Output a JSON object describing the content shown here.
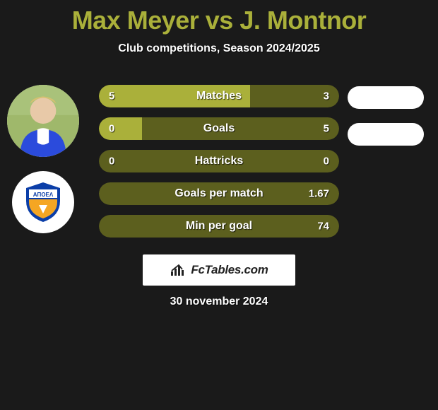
{
  "title_color": "#aab03a",
  "title": "Max Meyer vs J. Montnor",
  "subtitle": "Club competitions, Season 2024/2025",
  "bars": {
    "bg_color": "#5c5f1e",
    "fill_color": "#aab03a",
    "label_fontsize": 16,
    "value_fontsize": 15,
    "items": [
      {
        "label": "Matches",
        "left": "5",
        "right": "3",
        "fill_pct": 63
      },
      {
        "label": "Goals",
        "left": "0",
        "right": "5",
        "fill_pct": 18
      },
      {
        "label": "Hattricks",
        "left": "0",
        "right": "0",
        "fill_pct": 0
      },
      {
        "label": "Goals per match",
        "left": "",
        "right": "1.67",
        "fill_pct": 0
      },
      {
        "label": "Min per goal",
        "left": "",
        "right": "74",
        "fill_pct": 0
      }
    ]
  },
  "pills": {
    "count": 2,
    "color": "#ffffff"
  },
  "footer_brand": "FcTables.com",
  "date": "30 november 2024",
  "background_color": "#1a1a1a"
}
